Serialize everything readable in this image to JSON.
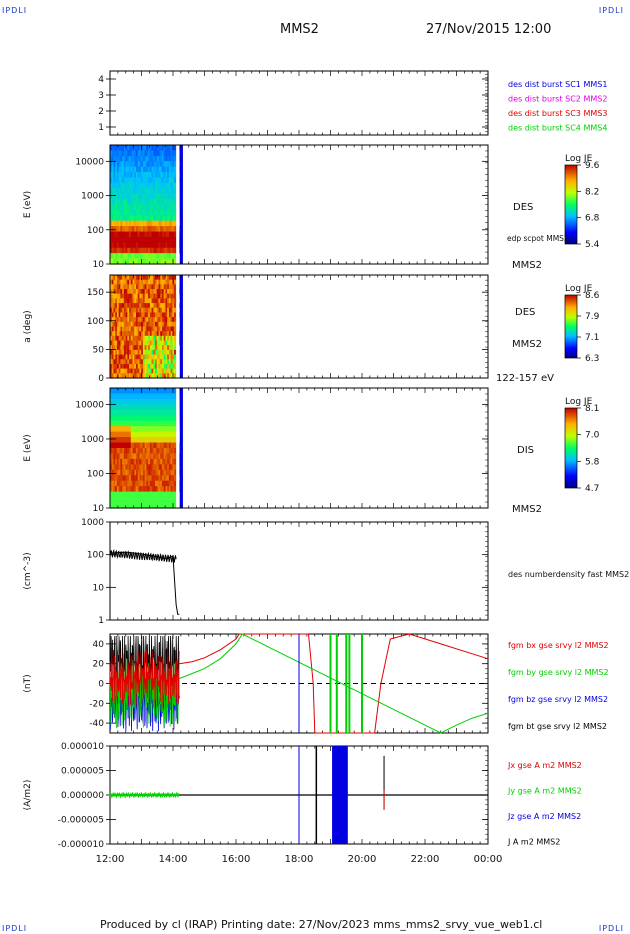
{
  "header": {
    "mission": "MMS2",
    "datetime": "27/Nov/2015 12:00",
    "corner": "IPDLI"
  },
  "footer": {
    "text": "Produced by cl (IRAP)   Printing date: 27/Nov/2023   mms_mms2_srvy_vue_web1.cl"
  },
  "colors": {
    "red": "#e00000",
    "green": "#00d000",
    "blue": "#0000e0",
    "magenta": "#e000e0",
    "black": "#000000"
  },
  "time_axis": {
    "ticks": [
      "12:00",
      "14:00",
      "16:00",
      "18:00",
      "20:00",
      "22:00",
      "00:00"
    ],
    "start_hours": 12,
    "end_hours": 24
  },
  "chart_data": [
    {
      "type": "line",
      "id": "burst-panel",
      "yticks": [
        "1",
        "2",
        "3",
        "4"
      ],
      "ylim": [
        0.5,
        4.5
      ],
      "legend": [
        {
          "name": "des dist burst SC1 MMS1",
          "color": "#0000e0"
        },
        {
          "name": "des dist burst SC2 MMS2",
          "color": "#e000e0"
        },
        {
          "name": "des dist burst SC3 MMS3",
          "color": "#e00000"
        },
        {
          "name": "des dist burst SC4 MMS4",
          "color": "#00d000"
        }
      ]
    },
    {
      "type": "heatmap",
      "id": "des-energy",
      "ylabel": "E (eV)",
      "yscale": "log",
      "ylim": [
        10,
        30000
      ],
      "yticks": [
        "10",
        "100",
        "1000",
        "10000"
      ],
      "labels": [
        "DES",
        "edp scpot MMS2",
        "MMS2"
      ],
      "colorbar": {
        "title": "Log JE",
        "ticks": [
          "9.6",
          "8.2",
          "6.8",
          "5.4"
        ]
      }
    },
    {
      "type": "heatmap",
      "id": "des-pitch",
      "ylabel": "a (deg)",
      "ylim": [
        0,
        180
      ],
      "yticks": [
        "0",
        "50",
        "100",
        "150"
      ],
      "labels": [
        "DES",
        "MMS2",
        "122-157 eV"
      ],
      "colorbar": {
        "title": "Log JE",
        "ticks": [
          "8.6",
          "7.9",
          "7.1",
          "6.3"
        ]
      }
    },
    {
      "type": "heatmap",
      "id": "dis-energy",
      "ylabel": "E (eV)",
      "yscale": "log",
      "ylim": [
        10,
        30000
      ],
      "yticks": [
        "10",
        "100",
        "1000",
        "10000"
      ],
      "labels": [
        "DIS",
        "MMS2"
      ],
      "colorbar": {
        "title": "Log JE",
        "ticks": [
          "8.1",
          "7.0",
          "5.8",
          "4.7"
        ]
      }
    },
    {
      "type": "line",
      "id": "density",
      "ylabel": "(cm^-3)",
      "yscale": "log",
      "ylim": [
        1,
        1000
      ],
      "yticks": [
        "1",
        "10",
        "100",
        "1000"
      ],
      "series": [
        {
          "name": "des numberdensity fast MMS2",
          "color": "#000000",
          "x": [
            12.0,
            12.5,
            13.0,
            13.4,
            13.8,
            14.0,
            14.1,
            14.15,
            14.2
          ],
          "y": [
            110,
            120,
            105,
            90,
            75,
            90,
            3,
            1.5,
            1.5
          ]
        }
      ]
    },
    {
      "type": "line",
      "id": "fgm",
      "ylabel": "(nT)",
      "ylim": [
        -50,
        50
      ],
      "yticks": [
        "-40",
        "-20",
        "0",
        "20",
        "40"
      ],
      "series": [
        {
          "name": "fgm bx gse srvy l2 MMS2",
          "color": "#e00000",
          "x": [
            14.2,
            14.6,
            15.0,
            15.5,
            16.0,
            16.1,
            18.3,
            18.45,
            18.5,
            20.4,
            20.6,
            20.9,
            21.5,
            22.5,
            23.5,
            24.0
          ],
          "y": [
            20,
            22,
            26,
            34,
            45,
            50,
            50,
            0,
            -50,
            -50,
            0,
            45,
            50,
            40,
            30,
            25
          ]
        },
        {
          "name": "fgm by gse srvy l2 MMS2",
          "color": "#00d000",
          "x": [
            14.2,
            14.6,
            15.0,
            15.5,
            16.0,
            16.2,
            22.5,
            23.0,
            23.5,
            24.0
          ],
          "y": [
            5,
            10,
            15,
            25,
            40,
            50,
            -50,
            -42,
            -35,
            -30
          ]
        },
        {
          "name": "fgm bz gse srvy l2 MMS2",
          "color": "#0000e0",
          "x": [],
          "y": []
        },
        {
          "name": "fgm bt gse srvy l2 MMS2",
          "color": "#000000",
          "x": [],
          "y": []
        }
      ]
    },
    {
      "type": "line",
      "id": "current",
      "ylabel": "(A/m2)",
      "ylim": [
        -1e-05,
        1e-05
      ],
      "yticks": [
        "-0.000010",
        "-0.000005",
        "0.000000",
        "0.000005",
        "0.000010"
      ],
      "series": [
        {
          "name": "Jx gse A m2 MMS2",
          "color": "#e00000"
        },
        {
          "name": "Jy gse A m2 MMS2",
          "color": "#00d000"
        },
        {
          "name": "Jz gse A m2 MMS2",
          "color": "#0000e0"
        },
        {
          "name": "J A m2 MMS2",
          "color": "#000000"
        }
      ]
    }
  ]
}
